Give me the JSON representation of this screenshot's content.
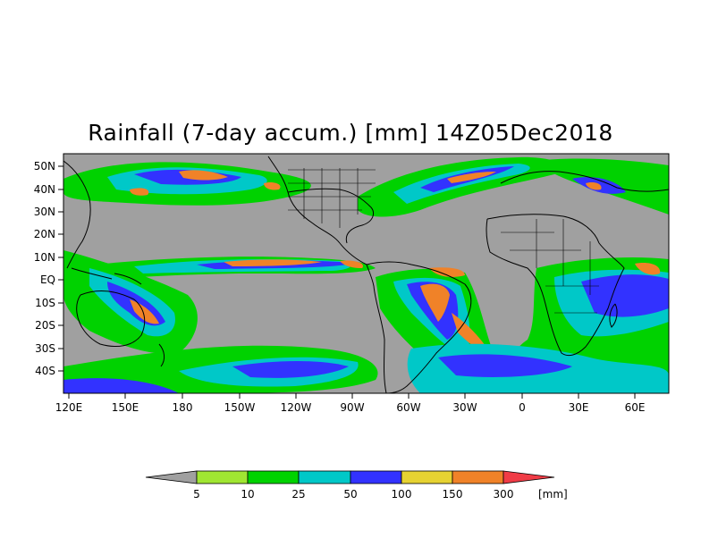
{
  "title": "Rainfall (7-day accum.) [mm] 14Z05Dec2018",
  "lat_labels": [
    "50N",
    "40N",
    "30N",
    "20N",
    "10N",
    "EQ",
    "10S",
    "20S",
    "30S",
    "40S"
  ],
  "lon_labels": [
    "120E",
    "150E",
    "180",
    "150W",
    "120W",
    "90W",
    "60W",
    "30W",
    "0",
    "30E",
    "60E"
  ],
  "colorbar": {
    "unit": "[mm]",
    "thresholds": [
      "5",
      "10",
      "25",
      "50",
      "100",
      "150",
      "300"
    ],
    "colors": [
      "#a0a0a0",
      "#a0e632",
      "#00d200",
      "#00c8c8",
      "#3232ff",
      "#e6d232",
      "#f08228",
      "#f03c46"
    ]
  },
  "colors": {
    "no_rain": "#a0a0a0",
    "coastline": "#000000"
  }
}
